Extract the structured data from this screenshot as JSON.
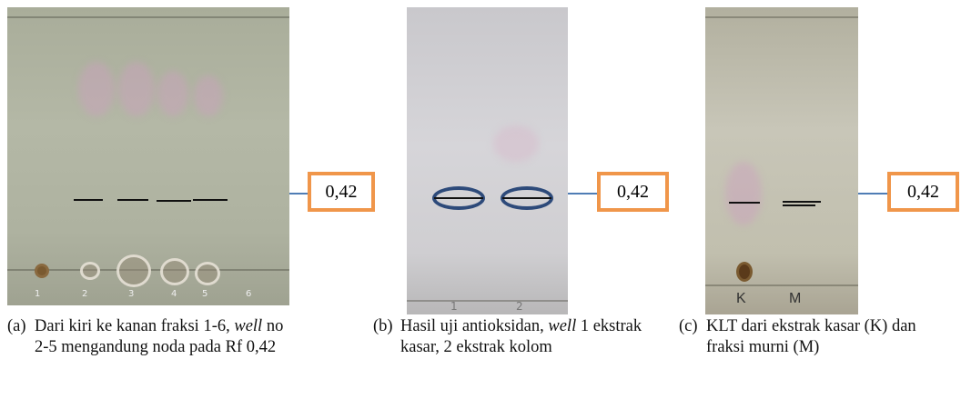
{
  "panels": [
    {
      "lanes": [
        "1",
        "2",
        "3",
        "4",
        "5",
        "6"
      ],
      "rf": "0,42",
      "marker": "(a)",
      "caption": [
        "Dari kiri ke kanan fraksi 1-6, ",
        "well",
        " no 2-5 mengandung noda pada Rf 0,42"
      ]
    },
    {
      "lanes": [
        "1",
        "2"
      ],
      "rf": "0,42",
      "marker": "(b)",
      "caption": [
        "Hasil uji antioksidan, ",
        "well",
        " 1 ekstrak kasar, 2 ekstrak kolom"
      ]
    },
    {
      "lanes": [
        "K",
        "M"
      ],
      "rf": "0,42",
      "marker": "(c)",
      "caption": [
        "KLT dari ekstrak kasar (K) dan fraksi murni (M)"
      ]
    }
  ]
}
